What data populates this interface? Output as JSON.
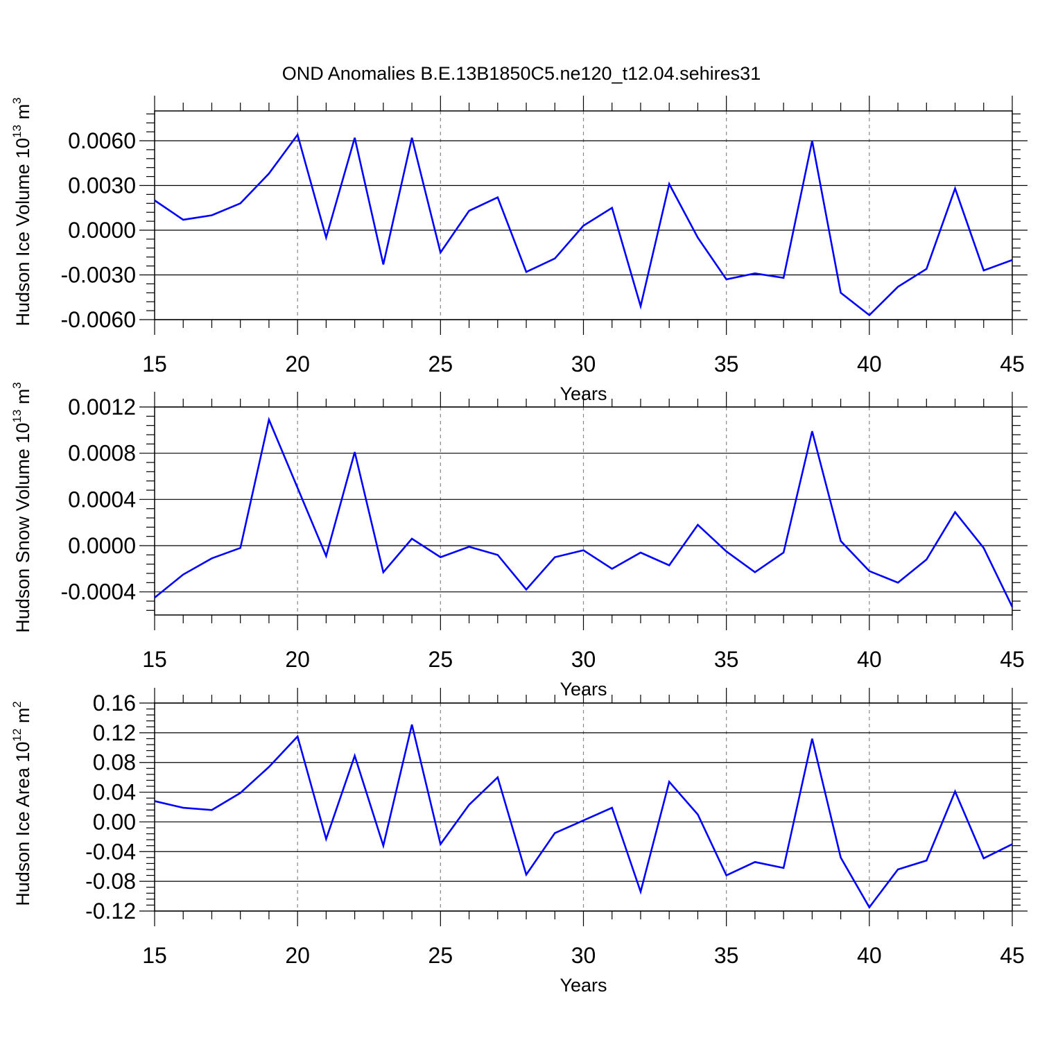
{
  "title": "OND Anomalies B.E.13B1850C5.ne120_t12.04.sehires31",
  "line_color": "#0000ff",
  "chart_data": [
    {
      "type": "line",
      "xlabel": "Years",
      "ylabel": {
        "text": "Hudson Ice Volume 10",
        "sup": "13",
        "unit": " m",
        "unit_sup": "3"
      },
      "xlim": [
        15,
        45
      ],
      "ylim": [
        -0.006,
        0.008
      ],
      "xticks": [
        15,
        20,
        25,
        30,
        35,
        40,
        45
      ],
      "xtick_labels": [
        "15",
        "20",
        "25",
        "30",
        "35",
        "40",
        "45"
      ],
      "yticks": [
        -0.006,
        -0.003,
        0.0,
        0.003,
        0.006
      ],
      "ytick_labels": [
        "-0.0060",
        "-0.0030",
        "0.0000",
        "0.0030",
        "0.0060"
      ],
      "x": [
        15,
        16,
        17,
        18,
        19,
        20,
        21,
        22,
        23,
        24,
        25,
        26,
        27,
        28,
        29,
        30,
        31,
        32,
        33,
        34,
        35,
        36,
        37,
        38,
        39,
        40,
        41,
        42,
        43,
        44,
        45
      ],
      "series": [
        {
          "values": [
            0.002,
            0.0007,
            0.001,
            0.0018,
            0.0038,
            0.0064,
            -0.0005,
            0.0062,
            -0.0023,
            0.0062,
            -0.0015,
            0.0013,
            0.0022,
            -0.0028,
            -0.0019,
            0.0003,
            0.0015,
            -0.0051,
            0.0031,
            -0.0005,
            -0.0033,
            -0.0029,
            -0.0032,
            0.006,
            -0.0042,
            -0.0057,
            -0.0038,
            -0.0026,
            0.0028,
            -0.0027,
            -0.002
          ]
        }
      ],
      "grid": "vertical dashed at major x ticks"
    },
    {
      "type": "line",
      "xlabel": "Years",
      "ylabel": {
        "text": "Hudson Snow Volume 10",
        "sup": "13",
        "unit": " m",
        "unit_sup": "3"
      },
      "xlim": [
        15,
        45
      ],
      "ylim": [
        -0.0006,
        0.0012
      ],
      "xticks": [
        15,
        20,
        25,
        30,
        35,
        40,
        45
      ],
      "xtick_labels": [
        "15",
        "20",
        "25",
        "30",
        "35",
        "40",
        "45"
      ],
      "yticks": [
        -0.0004,
        0.0,
        0.0004,
        0.0008,
        0.0012
      ],
      "ytick_labels": [
        "-0.0004",
        "0.0000",
        "0.0004",
        "0.0008",
        "0.0012"
      ],
      "x": [
        15,
        16,
        17,
        18,
        19,
        20,
        21,
        22,
        23,
        24,
        25,
        26,
        27,
        28,
        29,
        30,
        31,
        32,
        33,
        34,
        35,
        36,
        37,
        38,
        39,
        40,
        41,
        42,
        43,
        44,
        45
      ],
      "series": [
        {
          "values": [
            -0.00045,
            -0.00025,
            -0.00011,
            -2e-05,
            0.00109,
            0.0005,
            -9e-05,
            0.00081,
            -0.00023,
            6e-05,
            -0.0001,
            -1e-05,
            -8e-05,
            -0.00038,
            -0.0001,
            -4e-05,
            -0.0002,
            -6e-05,
            -0.00017,
            0.00018,
            -5e-05,
            -0.00023,
            -6e-05,
            0.00099,
            4e-05,
            -0.00022,
            -0.00032,
            -0.00012,
            0.00029,
            -2e-05,
            -0.00053
          ]
        }
      ],
      "grid": "vertical dashed at major x ticks"
    },
    {
      "type": "line",
      "xlabel": "Years",
      "ylabel": {
        "text": "Hudson Ice Area 10",
        "sup": "12",
        "unit": " m",
        "unit_sup": "2"
      },
      "xlim": [
        15,
        45
      ],
      "ylim": [
        -0.12,
        0.16
      ],
      "xticks": [
        15,
        20,
        25,
        30,
        35,
        40,
        45
      ],
      "xtick_labels": [
        "15",
        "20",
        "25",
        "30",
        "35",
        "40",
        "45"
      ],
      "yticks": [
        -0.12,
        -0.08,
        -0.04,
        0.0,
        0.04,
        0.08,
        0.12,
        0.16
      ],
      "ytick_labels": [
        "-0.12",
        "-0.08",
        "-0.04",
        "0.00",
        "0.04",
        "0.08",
        "0.12",
        "0.16"
      ],
      "x": [
        15,
        16,
        17,
        18,
        19,
        20,
        21,
        22,
        23,
        24,
        25,
        26,
        27,
        28,
        29,
        30,
        31,
        32,
        33,
        34,
        35,
        36,
        37,
        38,
        39,
        40,
        41,
        42,
        43,
        44,
        45
      ],
      "series": [
        {
          "values": [
            0.028,
            0.019,
            0.016,
            0.039,
            0.074,
            0.115,
            -0.023,
            0.089,
            -0.032,
            0.131,
            -0.03,
            0.023,
            0.06,
            -0.071,
            -0.015,
            0.002,
            0.019,
            -0.094,
            0.054,
            0.01,
            -0.072,
            -0.054,
            -0.062,
            0.112,
            -0.048,
            -0.115,
            -0.064,
            -0.052,
            0.041,
            -0.049,
            -0.03
          ]
        }
      ],
      "grid": "vertical dashed at major x ticks"
    }
  ]
}
